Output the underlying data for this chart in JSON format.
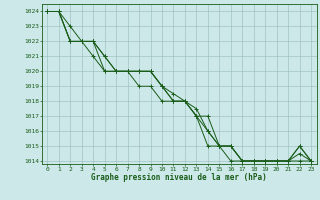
{
  "title": "Graphe pression niveau de la mer (hPa)",
  "bg_color": "#cce8e8",
  "grid_color": "#99bbbb",
  "line_color": "#1a5c1a",
  "marker_color": "#1a5c1a",
  "xlim": [
    -0.5,
    23.5
  ],
  "ylim": [
    1013.8,
    1024.5
  ],
  "yticks": [
    1014,
    1015,
    1016,
    1017,
    1018,
    1019,
    1020,
    1021,
    1022,
    1023,
    1024
  ],
  "xticks": [
    0,
    1,
    2,
    3,
    4,
    5,
    6,
    7,
    8,
    9,
    10,
    11,
    12,
    13,
    14,
    15,
    16,
    17,
    18,
    19,
    20,
    21,
    22,
    23
  ],
  "series": [
    [
      1024,
      1024,
      1023,
      1022,
      1022,
      1021,
      1020,
      1020,
      1020,
      1020,
      1019,
      1018.5,
      1018,
      1017,
      1017,
      1015,
      1015,
      1014,
      1014,
      1014,
      1014,
      1014,
      1015,
      1014
    ],
    [
      1024,
      1024,
      1022,
      1022,
      1022,
      1021,
      1020,
      1020,
      1020,
      1020,
      1019,
      1018,
      1018,
      1017.5,
      1016,
      1015,
      1015,
      1014,
      1014,
      1014,
      1014,
      1014,
      1014,
      1014
    ],
    [
      1024,
      1024,
      1022,
      1022,
      1022,
      1020,
      1020,
      1020,
      1019,
      1019,
      1018,
      1018,
      1018,
      1017,
      1015,
      1015,
      1014,
      1014,
      1014,
      1014,
      1014,
      1014,
      1015,
      1014
    ],
    [
      1024,
      1024,
      1022,
      1022,
      1021,
      1020,
      1020,
      1020,
      1020,
      1020,
      1019,
      1018,
      1018,
      1017,
      1016,
      1015,
      1015,
      1014,
      1014,
      1014,
      1014,
      1014,
      1014.5,
      1014
    ]
  ],
  "label_fontsize": 4.5,
  "xlabel_fontsize": 5.5
}
